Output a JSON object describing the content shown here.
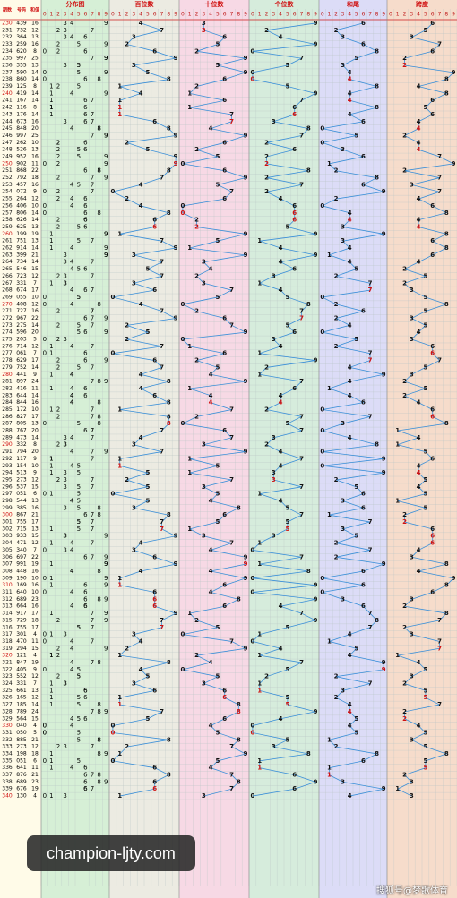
{
  "header": {
    "issue": "期数",
    "number": "号码",
    "sum": "和值"
  },
  "sections": [
    "分布图",
    "百位数",
    "十位数",
    "个位数",
    "和尾",
    "跨度"
  ],
  "digits": [
    "0",
    "1",
    "2",
    "3",
    "4",
    "5",
    "6",
    "7",
    "8",
    "9"
  ],
  "rows": [
    [
      "230",
      "439",
      16,
      4,
      3,
      9,
      6,
      6
    ],
    [
      "231",
      "732",
      12,
      7,
      3,
      2,
      2,
      5
    ],
    [
      "232",
      "364",
      13,
      3,
      6,
      4,
      3,
      3
    ],
    [
      "233",
      "259",
      16,
      2,
      5,
      9,
      6,
      7
    ],
    [
      "234",
      "620",
      8,
      6,
      2,
      0,
      8,
      6
    ],
    [
      "235",
      "997",
      25,
      9,
      9,
      7,
      5,
      2
    ],
    [
      "236",
      "355",
      13,
      3,
      5,
      5,
      3,
      2
    ],
    [
      "237",
      "590",
      14,
      5,
      9,
      0,
      4,
      9
    ],
    [
      "238",
      "860",
      14,
      8,
      6,
      0,
      4,
      8
    ],
    [
      "239",
      "125",
      8,
      1,
      2,
      5,
      8,
      4
    ],
    [
      "240",
      "419",
      14,
      4,
      1,
      9,
      4,
      8
    ],
    [
      "241",
      "167",
      14,
      1,
      6,
      7,
      4,
      6
    ],
    [
      "242",
      "116",
      8,
      1,
      1,
      6,
      8,
      5
    ],
    [
      "243",
      "176",
      14,
      1,
      7,
      6,
      4,
      6
    ],
    [
      "244",
      "673",
      16,
      6,
      7,
      3,
      6,
      4
    ],
    [
      "245",
      "848",
      20,
      8,
      4,
      8,
      0,
      4
    ],
    [
      "246",
      "997",
      25,
      9,
      9,
      7,
      5,
      2
    ],
    [
      "247",
      "262",
      10,
      2,
      6,
      2,
      0,
      4
    ],
    [
      "248",
      "526",
      13,
      5,
      2,
      6,
      3,
      4
    ],
    [
      "249",
      "952",
      16,
      9,
      5,
      2,
      6,
      7
    ],
    [
      "250",
      "902",
      11,
      9,
      0,
      2,
      1,
      9
    ],
    [
      "251",
      "868",
      22,
      8,
      6,
      8,
      2,
      2
    ],
    [
      "252",
      "792",
      18,
      7,
      9,
      2,
      8,
      7
    ],
    [
      "253",
      "457",
      16,
      4,
      5,
      7,
      6,
      3
    ],
    [
      "254",
      "072",
      9,
      0,
      7,
      2,
      9,
      7
    ],
    [
      "255",
      "264",
      12,
      2,
      6,
      4,
      2,
      4
    ],
    [
      "256",
      "406",
      10,
      4,
      0,
      6,
      0,
      6
    ],
    [
      "257",
      "806",
      14,
      8,
      0,
      6,
      4,
      8
    ],
    [
      "258",
      "626",
      14,
      6,
      2,
      6,
      4,
      4
    ],
    [
      "259",
      "625",
      13,
      6,
      2,
      5,
      3,
      4
    ],
    [
      "260",
      "199",
      19,
      1,
      9,
      9,
      9,
      8
    ],
    [
      "261",
      "751",
      13,
      7,
      5,
      1,
      3,
      6
    ],
    [
      "262",
      "914",
      14,
      9,
      1,
      4,
      4,
      8
    ],
    [
      "263",
      "399",
      21,
      3,
      9,
      9,
      1,
      6
    ],
    [
      "264",
      "734",
      14,
      7,
      3,
      4,
      4,
      4
    ],
    [
      "265",
      "546",
      15,
      5,
      4,
      6,
      5,
      2
    ],
    [
      "266",
      "723",
      12,
      7,
      2,
      3,
      2,
      5
    ],
    [
      "267",
      "331",
      7,
      3,
      3,
      1,
      7,
      2
    ],
    [
      "268",
      "674",
      17,
      6,
      7,
      4,
      7,
      3
    ],
    [
      "269",
      "055",
      10,
      0,
      5,
      5,
      0,
      5
    ],
    [
      "270",
      "408",
      12,
      4,
      0,
      8,
      2,
      8
    ],
    [
      "271",
      "727",
      16,
      7,
      2,
      7,
      6,
      5
    ],
    [
      "272",
      "967",
      22,
      9,
      6,
      7,
      2,
      3
    ],
    [
      "273",
      "275",
      14,
      2,
      7,
      5,
      4,
      5
    ],
    [
      "274",
      "596",
      20,
      5,
      9,
      6,
      0,
      4
    ],
    [
      "275",
      "203",
      5,
      2,
      0,
      3,
      5,
      3
    ],
    [
      "276",
      "714",
      12,
      7,
      1,
      4,
      2,
      6
    ],
    [
      "277",
      "061",
      7,
      0,
      6,
      1,
      7,
      6
    ],
    [
      "278",
      "629",
      17,
      6,
      2,
      9,
      7,
      7
    ],
    [
      "279",
      "752",
      14,
      7,
      5,
      2,
      4,
      5
    ],
    [
      "280",
      "441",
      9,
      4,
      4,
      1,
      9,
      3
    ],
    [
      "281",
      "897",
      24,
      8,
      9,
      7,
      4,
      2
    ],
    [
      "282",
      "416",
      11,
      4,
      1,
      6,
      1,
      5
    ],
    [
      "283",
      "644",
      14,
      6,
      4,
      4,
      4,
      2
    ],
    [
      "284",
      "844",
      16,
      8,
      4,
      4,
      6,
      4
    ],
    [
      "285",
      "172",
      10,
      1,
      7,
      2,
      0,
      6
    ],
    [
      "286",
      "827",
      17,
      8,
      2,
      7,
      7,
      6
    ],
    [
      "287",
      "805",
      13,
      8,
      0,
      5,
      3,
      8
    ],
    [
      "288",
      "767",
      20,
      7,
      6,
      7,
      0,
      1
    ],
    [
      "289",
      "473",
      14,
      4,
      7,
      3,
      4,
      4
    ],
    [
      "290",
      "332",
      8,
      3,
      3,
      2,
      8,
      1
    ],
    [
      "291",
      "794",
      20,
      7,
      9,
      4,
      0,
      5
    ],
    [
      "292",
      "117",
      9,
      1,
      1,
      7,
      9,
      6
    ],
    [
      "293",
      "154",
      10,
      1,
      5,
      4,
      0,
      4
    ],
    [
      "294",
      "513",
      9,
      5,
      1,
      3,
      9,
      4
    ],
    [
      "295",
      "273",
      12,
      2,
      7,
      3,
      2,
      5
    ],
    [
      "296",
      "537",
      15,
      5,
      3,
      7,
      5,
      4
    ],
    [
      "297",
      "051",
      6,
      0,
      5,
      1,
      6,
      5
    ],
    [
      "298",
      "544",
      13,
      5,
      4,
      4,
      3,
      1
    ],
    [
      "299",
      "385",
      16,
      3,
      8,
      5,
      6,
      5
    ],
    [
      "300",
      "867",
      21,
      8,
      6,
      7,
      1,
      2
    ],
    [
      "301",
      "755",
      17,
      7,
      5,
      5,
      7,
      2
    ],
    [
      "302",
      "715",
      13,
      7,
      1,
      5,
      3,
      6
    ],
    [
      "303",
      "933",
      15,
      9,
      3,
      3,
      5,
      6
    ],
    [
      "304",
      "471",
      12,
      4,
      7,
      1,
      2,
      6
    ],
    [
      "305",
      "340",
      7,
      3,
      4,
      0,
      7,
      4
    ],
    [
      "306",
      "697",
      22,
      6,
      9,
      7,
      2,
      3
    ],
    [
      "307",
      "991",
      19,
      9,
      9,
      1,
      9,
      8
    ],
    [
      "308",
      "448",
      16,
      4,
      4,
      8,
      6,
      4
    ],
    [
      "309",
      "190",
      10,
      1,
      9,
      0,
      0,
      9
    ],
    [
      "310",
      "169",
      16,
      1,
      6,
      9,
      6,
      8
    ],
    [
      "311",
      "640",
      10,
      6,
      4,
      0,
      0,
      6
    ],
    [
      "312",
      "689",
      23,
      6,
      8,
      9,
      3,
      3
    ],
    [
      "313",
      "664",
      16,
      6,
      6,
      4,
      6,
      2
    ],
    [
      "314",
      "917",
      17,
      9,
      1,
      7,
      7,
      8
    ],
    [
      "315",
      "729",
      18,
      7,
      2,
      9,
      8,
      7
    ],
    [
      "316",
      "755",
      17,
      7,
      5,
      5,
      7,
      2
    ],
    [
      "317",
      "301",
      4,
      3,
      0,
      1,
      4,
      3
    ],
    [
      "318",
      "470",
      11,
      4,
      7,
      0,
      1,
      7
    ],
    [
      "319",
      "294",
      15,
      2,
      9,
      4,
      5,
      7
    ],
    [
      "320",
      "121",
      4,
      1,
      2,
      1,
      4,
      1
    ],
    [
      "321",
      "847",
      19,
      8,
      4,
      7,
      9,
      4
    ],
    [
      "322",
      "405",
      9,
      4,
      0,
      5,
      9,
      5
    ],
    [
      "323",
      "552",
      12,
      5,
      5,
      2,
      2,
      3
    ],
    [
      "324",
      "331",
      7,
      3,
      3,
      1,
      7,
      2
    ],
    [
      "325",
      "661",
      13,
      6,
      6,
      1,
      3,
      5
    ],
    [
      "326",
      "165",
      12,
      1,
      6,
      5,
      2,
      5
    ],
    [
      "327",
      "185",
      14,
      1,
      8,
      5,
      4,
      7
    ],
    [
      "328",
      "789",
      24,
      7,
      8,
      9,
      4,
      2
    ],
    [
      "329",
      "564",
      15,
      5,
      6,
      4,
      5,
      2
    ],
    [
      "330",
      "040",
      4,
      0,
      4,
      0,
      4,
      4
    ],
    [
      "331",
      "050",
      5,
      0,
      5,
      0,
      5,
      5
    ],
    [
      "332",
      "885",
      21,
      8,
      8,
      5,
      1,
      3
    ],
    [
      "333",
      "273",
      12,
      2,
      7,
      3,
      2,
      5
    ],
    [
      "334",
      "198",
      18,
      1,
      9,
      8,
      8,
      8
    ],
    [
      "335",
      "051",
      6,
      0,
      5,
      1,
      6,
      5
    ],
    [
      "336",
      "641",
      11,
      6,
      4,
      1,
      1,
      5
    ],
    [
      "337",
      "876",
      21,
      8,
      7,
      6,
      1,
      2
    ],
    [
      "338",
      "689",
      23,
      6,
      8,
      9,
      3,
      3
    ],
    [
      "339",
      "676",
      19,
      6,
      7,
      6,
      9,
      1
    ],
    [
      "340",
      "130",
      4,
      1,
      3,
      0,
      4,
      3
    ]
  ],
  "watermark": "champion-ljty.com",
  "footer": "搜狐号@梦歌体育"
}
